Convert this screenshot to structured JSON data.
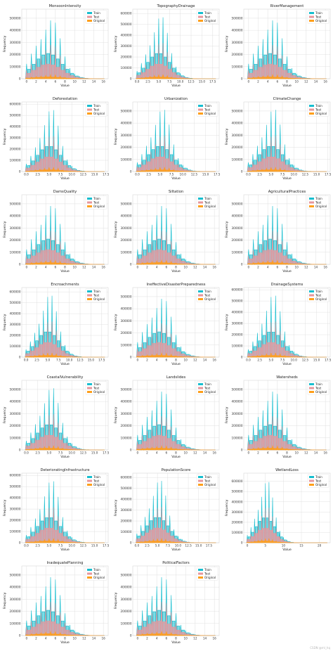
{
  "colors": {
    "Train": "#17becf",
    "Test": "#e7969c",
    "Original": "#ff9f1a",
    "grid": "#d9d9d9",
    "axis": "#555555"
  },
  "common": {
    "xlabel": "Value",
    "ylabel": "Frequency",
    "legend": [
      "Train",
      "Test",
      "Original"
    ]
  },
  "watermark": "CSDN @ml_hq",
  "chart_data": [
    {
      "type": "area",
      "title": "MonsoonIntensity",
      "xlim": [
        -1,
        17
      ],
      "xticks": [
        0,
        2,
        4,
        6,
        8,
        10,
        12,
        14,
        16
      ],
      "ylim": [
        0,
        575000
      ],
      "yticks": [
        0,
        100000,
        200000,
        300000,
        400000,
        500000
      ],
      "peak_x": 4.5,
      "peak": 550000,
      "spread": 2.6,
      "xmax": 16,
      "legend": "top-right",
      "grid": true
    },
    {
      "type": "area",
      "title": "TopographyDrainage",
      "xlim": [
        -1,
        19
      ],
      "xticks": [
        0,
        2.5,
        5,
        7.5,
        10,
        12.5,
        15,
        17.5
      ],
      "xticklabels": [
        "0.0",
        "2.5",
        "5.0",
        "7.5",
        "10.0",
        "12.5",
        "15.0",
        "17.5"
      ],
      "ylim": [
        0,
        640000
      ],
      "yticks": [
        0,
        100000,
        200000,
        300000,
        400000,
        500000,
        600000
      ],
      "peak_x": 5,
      "peak": 620000,
      "spread": 2.4,
      "xmax": 18,
      "legend": "top-right",
      "grid": true
    },
    {
      "type": "area",
      "title": "RiverManagement",
      "xlim": [
        -1,
        17
      ],
      "xticks": [
        0,
        2,
        4,
        6,
        8,
        10,
        12,
        14,
        16
      ],
      "ylim": [
        0,
        575000
      ],
      "yticks": [
        0,
        100000,
        200000,
        300000,
        400000,
        500000
      ],
      "peak_x": 4.5,
      "peak": 550000,
      "spread": 2.6,
      "xmax": 16,
      "legend": "top-right",
      "grid": true
    },
    {
      "type": "area",
      "title": "Deforestation",
      "xlim": [
        -1,
        18
      ],
      "xticks": [
        0,
        2.5,
        5,
        7.5,
        10,
        12.5,
        15,
        17.5
      ],
      "xticklabels": [
        "0.0",
        "2.5",
        "5.0",
        "7.5",
        "10.0",
        "12.5",
        "15.0",
        "17.5"
      ],
      "ylim": [
        0,
        620000
      ],
      "yticks": [
        0,
        100000,
        200000,
        300000,
        400000,
        500000,
        600000
      ],
      "peak_x": 5,
      "peak": 600000,
      "spread": 2.4,
      "xmax": 17,
      "legend": "top-right",
      "grid": true
    },
    {
      "type": "area",
      "title": "Urbanization",
      "xlim": [
        -1,
        18
      ],
      "xticks": [
        0,
        2.5,
        5,
        7.5,
        10,
        12.5,
        15,
        17.5
      ],
      "xticklabels": [
        "0.0",
        "2.5",
        "5.0",
        "7.5",
        "10.0",
        "12.5",
        "15.0",
        "17.5"
      ],
      "ylim": [
        0,
        575000
      ],
      "yticks": [
        0,
        100000,
        200000,
        300000,
        400000,
        500000
      ],
      "peak_x": 5,
      "peak": 555000,
      "spread": 2.5,
      "xmax": 17,
      "legend": "top-right",
      "grid": true
    },
    {
      "type": "area",
      "title": "ClimateChange",
      "xlim": [
        -1,
        18
      ],
      "xticks": [
        0,
        2.5,
        5,
        7.5,
        10,
        12.5,
        15,
        17.5
      ],
      "xticklabels": [
        "0.0",
        "2.5",
        "5.0",
        "7.5",
        "10.0",
        "12.5",
        "15.0",
        "17.5"
      ],
      "ylim": [
        0,
        575000
      ],
      "yticks": [
        0,
        100000,
        200000,
        300000,
        400000,
        500000
      ],
      "peak_x": 5,
      "peak": 555000,
      "spread": 2.5,
      "xmax": 17,
      "legend": "top-right",
      "grid": true
    },
    {
      "type": "area",
      "title": "DamsQuality",
      "xlim": [
        -1,
        17
      ],
      "xticks": [
        0,
        2,
        4,
        6,
        8,
        10,
        12,
        14,
        16
      ],
      "ylim": [
        0,
        575000
      ],
      "yticks": [
        0,
        100000,
        200000,
        300000,
        400000,
        500000
      ],
      "peak_x": 4.5,
      "peak": 550000,
      "spread": 2.6,
      "xmax": 16,
      "legend": "top-right",
      "grid": true
    },
    {
      "type": "area",
      "title": "Siltation",
      "xlim": [
        -1,
        17
      ],
      "xticks": [
        0,
        2,
        4,
        6,
        8,
        10,
        12,
        14,
        16
      ],
      "ylim": [
        0,
        575000
      ],
      "yticks": [
        0,
        100000,
        200000,
        300000,
        400000,
        500000
      ],
      "peak_x": 4.5,
      "peak": 550000,
      "spread": 2.6,
      "xmax": 16,
      "legend": "top-right",
      "grid": true
    },
    {
      "type": "area",
      "title": "AgriculturalPractices",
      "xlim": [
        -1,
        17
      ],
      "xticks": [
        0,
        2,
        4,
        6,
        8,
        10,
        12,
        14,
        16
      ],
      "ylim": [
        0,
        575000
      ],
      "yticks": [
        0,
        100000,
        200000,
        300000,
        400000,
        500000
      ],
      "peak_x": 4.5,
      "peak": 550000,
      "spread": 2.6,
      "xmax": 16,
      "legend": "top-right",
      "grid": true
    },
    {
      "type": "area",
      "title": "Encroachments",
      "xlim": [
        -1,
        19
      ],
      "xticks": [
        0,
        2.5,
        5,
        7.5,
        10,
        12.5,
        15,
        17.5
      ],
      "xticklabels": [
        "0.0",
        "2.5",
        "5.0",
        "7.5",
        "10.0",
        "12.5",
        "15.0",
        "17.5"
      ],
      "ylim": [
        0,
        640000
      ],
      "yticks": [
        0,
        100000,
        200000,
        300000,
        400000,
        500000,
        600000
      ],
      "peak_x": 5,
      "peak": 620000,
      "spread": 2.4,
      "xmax": 18,
      "legend": "top-right",
      "grid": true
    },
    {
      "type": "area",
      "title": "IneffectiveDisasterPreparedness",
      "xlim": [
        -1,
        17
      ],
      "xticks": [
        0,
        2,
        4,
        6,
        8,
        10,
        12,
        14,
        16
      ],
      "ylim": [
        0,
        575000
      ],
      "yticks": [
        0,
        100000,
        200000,
        300000,
        400000,
        500000
      ],
      "peak_x": 4.5,
      "peak": 550000,
      "spread": 2.6,
      "xmax": 16,
      "legend": "top-right",
      "grid": true
    },
    {
      "type": "area",
      "title": "DrainageSystems",
      "xlim": [
        -1,
        18
      ],
      "xticks": [
        0,
        2.5,
        5,
        7.5,
        10,
        12.5,
        15,
        17.5
      ],
      "xticklabels": [
        "0.0",
        "2.5",
        "5.0",
        "7.5",
        "10.0",
        "12.5",
        "15.0",
        "17.5"
      ],
      "ylim": [
        0,
        620000
      ],
      "yticks": [
        0,
        100000,
        200000,
        300000,
        400000,
        500000,
        600000
      ],
      "peak_x": 5,
      "peak": 600000,
      "spread": 2.4,
      "xmax": 17,
      "legend": "top-right",
      "grid": true
    },
    {
      "type": "area",
      "title": "CoastalVulnerability",
      "xlim": [
        -1,
        18
      ],
      "xticks": [
        0,
        2.5,
        5,
        7.5,
        10,
        12.5,
        15,
        17.5
      ],
      "xticklabels": [
        "0.0",
        "2.5",
        "5.0",
        "7.5",
        "10.0",
        "12.5",
        "15.0",
        "17.5"
      ],
      "ylim": [
        0,
        575000
      ],
      "yticks": [
        0,
        100000,
        200000,
        300000,
        400000,
        500000
      ],
      "peak_x": 5,
      "peak": 555000,
      "spread": 2.5,
      "xmax": 17,
      "legend": "top-right",
      "grid": true
    },
    {
      "type": "area",
      "title": "Landslides",
      "xlim": [
        -1,
        17
      ],
      "xticks": [
        0,
        2,
        4,
        6,
        8,
        10,
        12,
        14,
        16
      ],
      "ylim": [
        0,
        575000
      ],
      "yticks": [
        0,
        100000,
        200000,
        300000,
        400000,
        500000
      ],
      "peak_x": 4.5,
      "peak": 550000,
      "spread": 2.6,
      "xmax": 16,
      "legend": "top-right",
      "grid": true
    },
    {
      "type": "area",
      "title": "Watersheds",
      "xlim": [
        -1,
        17
      ],
      "xticks": [
        0,
        2,
        4,
        6,
        8,
        10,
        12,
        14,
        16
      ],
      "ylim": [
        0,
        575000
      ],
      "yticks": [
        0,
        100000,
        200000,
        300000,
        400000,
        500000
      ],
      "peak_x": 4.5,
      "peak": 550000,
      "spread": 2.6,
      "xmax": 16,
      "legend": "top-right",
      "grid": true
    },
    {
      "type": "area",
      "title": "DeterioratingInfrastructure",
      "xlim": [
        -1,
        18
      ],
      "xticks": [
        0,
        2.5,
        5,
        7.5,
        10,
        12.5,
        15,
        17.5
      ],
      "xticklabels": [
        "0.0",
        "2.5",
        "5.0",
        "7.5",
        "10.0",
        "12.5",
        "15.0",
        "17.5"
      ],
      "ylim": [
        0,
        620000
      ],
      "yticks": [
        0,
        100000,
        200000,
        300000,
        400000,
        500000,
        600000
      ],
      "peak_x": 5,
      "peak": 600000,
      "spread": 2.4,
      "xmax": 17,
      "legend": "top-right",
      "grid": true
    },
    {
      "type": "area",
      "title": "PopulationScore",
      "xlim": [
        -1,
        20
      ],
      "xticks": [
        0,
        2.5,
        5,
        7.5,
        10,
        12.5,
        15,
        17.5
      ],
      "xticklabels": [
        "0.0",
        "2.5",
        "5.0",
        "7.5",
        "10.0",
        "12.5",
        "15.0",
        "17.5"
      ],
      "ylim": [
        0,
        640000
      ],
      "yticks": [
        0,
        100000,
        200000,
        300000,
        400000,
        500000,
        600000
      ],
      "peak_x": 5,
      "peak": 620000,
      "spread": 2.5,
      "xmax": 19,
      "legend": "top-right",
      "grid": true
    },
    {
      "type": "area",
      "title": "WetlandLoss",
      "xlim": [
        -1,
        23
      ],
      "xticks": [
        0,
        5,
        10,
        15,
        20
      ],
      "ylim": [
        0,
        680000
      ],
      "yticks": [
        0,
        100000,
        200000,
        300000,
        400000,
        500000,
        600000
      ],
      "peak_x": 5,
      "peak": 650000,
      "spread": 2.4,
      "xmax": 22,
      "legend": "top-right",
      "grid": true
    },
    {
      "type": "area",
      "title": "InadequatePlanning",
      "xlim": [
        -1,
        17
      ],
      "xticks": [
        0,
        2,
        4,
        6,
        8,
        10,
        12,
        14,
        16
      ],
      "ylim": [
        0,
        575000
      ],
      "yticks": [
        0,
        100000,
        200000,
        300000,
        400000,
        500000
      ],
      "peak_x": 4.5,
      "peak": 550000,
      "spread": 2.6,
      "xmax": 16,
      "legend": "top-right",
      "grid": true
    },
    {
      "type": "area",
      "title": "PoliticalFactors",
      "xlim": [
        -1,
        17
      ],
      "xticks": [
        0,
        2,
        4,
        6,
        8,
        10,
        12,
        14,
        16
      ],
      "ylim": [
        0,
        575000
      ],
      "yticks": [
        0,
        100000,
        200000,
        300000,
        400000,
        500000
      ],
      "peak_x": 4.5,
      "peak": 550000,
      "spread": 2.6,
      "xmax": 16,
      "legend": "top-right",
      "grid": true
    }
  ]
}
